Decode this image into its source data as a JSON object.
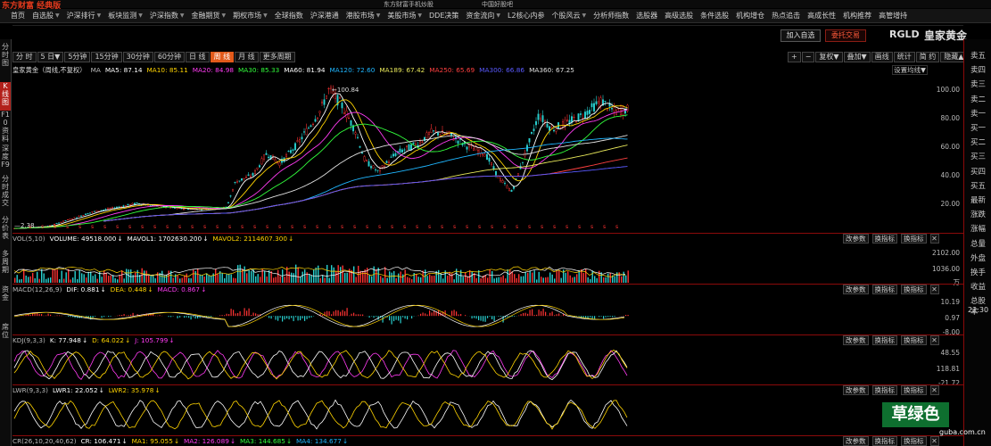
{
  "app": {
    "logo": "东方财富 经典版",
    "topnote1": "东方财富手机炒股",
    "topnote2": "中国好股吧"
  },
  "menu": [
    {
      "label": "首页",
      "dd": false
    },
    {
      "label": "自选股",
      "dd": true
    },
    {
      "label": "沪深排行",
      "dd": true
    },
    {
      "label": "板块监测",
      "dd": true
    },
    {
      "label": "沪深指数",
      "dd": true
    },
    {
      "label": "金融期货",
      "dd": true
    },
    {
      "label": "期权市场",
      "dd": true
    },
    {
      "label": "全球指数",
      "dd": false
    },
    {
      "label": "沪深港通",
      "dd": false
    },
    {
      "label": "港股市场",
      "dd": true
    },
    {
      "label": "美股市场",
      "dd": true
    },
    {
      "label": "DDE决策",
      "dd": false
    },
    {
      "label": "资金流向",
      "dd": true
    },
    {
      "label": "L2核心内参",
      "dd": false
    },
    {
      "label": "个股风云",
      "dd": true
    },
    {
      "label": "分析师指数",
      "dd": false
    },
    {
      "label": "选股器",
      "dd": false
    },
    {
      "label": "高级选股",
      "dd": false
    },
    {
      "label": "条件选股",
      "dd": false
    },
    {
      "label": "机构增仓",
      "dd": false
    },
    {
      "label": "热点追击",
      "dd": false
    },
    {
      "label": "高成长性",
      "dd": false
    },
    {
      "label": "机构推荐",
      "dd": false
    },
    {
      "label": "高管增持",
      "dd": false
    }
  ],
  "lefttabs": [
    {
      "label": "分时图",
      "active": false
    },
    {
      "label": "K线图",
      "active": true
    },
    {
      "label": "F10资料",
      "active": false
    },
    {
      "label": "深度F9",
      "active": false
    },
    {
      "label": "分时成交",
      "active": false
    },
    {
      "label": "分价表",
      "active": false
    },
    {
      "label": "多周期",
      "active": false
    },
    {
      "label": "资金",
      "active": false
    },
    {
      "label": "席位",
      "active": false
    }
  ],
  "periods": [
    {
      "label": "分 时",
      "active": false
    },
    {
      "label": "5 日▼",
      "active": false
    },
    {
      "label": "5分钟",
      "active": false
    },
    {
      "label": "15分钟",
      "active": false
    },
    {
      "label": "30分钟",
      "active": false
    },
    {
      "label": "60分钟",
      "active": false
    },
    {
      "label": "日 线",
      "active": false
    },
    {
      "label": "周 线",
      "active": true
    },
    {
      "label": "月 线",
      "active": false
    },
    {
      "label": "更多周期",
      "active": false
    }
  ],
  "toolbar": {
    "add_fav": "加入自选",
    "entrust": "委托交易",
    "code": "RGLD",
    "name": "皇家黄金",
    "plus": "+",
    "minus": "−",
    "fq": "复权▼",
    "overlay": "叠加▼",
    "draw": "画线",
    "stat": "统计",
    "simple": "简 约",
    "hide": "隐藏▲",
    "set_ma": "设置均线▼"
  },
  "main_header": {
    "title": "皇家黄金（周线,不复权）",
    "ma": "MA",
    "items": [
      {
        "text": "MA5: 87.14",
        "color": "#ffffff"
      },
      {
        "text": "MA10: 85.11",
        "color": "#ffd400"
      },
      {
        "text": "MA20: 84.98",
        "color": "#ff3bf2"
      },
      {
        "text": "MA30: 85.33",
        "color": "#32ff3c"
      },
      {
        "text": "MA60: 81.94",
        "color": "#ffffff"
      },
      {
        "text": "MA120: 72.60",
        "color": "#1fb6ff"
      },
      {
        "text": "MA189: 67.42",
        "color": "#e8e85a"
      },
      {
        "text": "MA250: 65.69",
        "color": "#ff4040"
      },
      {
        "text": "MA300: 66.86",
        "color": "#5a5aff"
      },
      {
        "text": "MA360: 67.25",
        "color": "#e0e0e0"
      }
    ]
  },
  "main_yaxis": [
    "100.00",
    "80.00",
    "60.00",
    "40.00",
    "20.00"
  ],
  "price_annotations": {
    "high": "100.84",
    "low": "2.38"
  },
  "right_panel": [
    "卖五",
    "卖四",
    "卖三",
    "卖二",
    "卖一",
    "买一",
    "买二",
    "买三",
    "买四",
    "买五",
    "最新",
    "涨跌",
    "涨幅",
    "总量",
    "外盘",
    "换手",
    "收益",
    "总股本"
  ],
  "time": "22:30",
  "panels": [
    {
      "id": "vol",
      "header": [
        {
          "text": "VOL(5,10)",
          "color": "#bbbbbb"
        },
        {
          "text": "VOLUME: 49518.000",
          "color": "#ffffff"
        },
        {
          "text": "MAVOL1: 1702630.200",
          "color": "#ffffff"
        },
        {
          "text": "MAVOL2: 2114607.300",
          "color": "#ffd400"
        }
      ],
      "yaxis": [
        "2102.00",
        "1036.00",
        "万"
      ]
    },
    {
      "id": "macd",
      "header": [
        {
          "text": "MACD(12,26,9)",
          "color": "#bbbbbb"
        },
        {
          "text": "DIF: 0.881",
          "color": "#ffffff"
        },
        {
          "text": "DEA: 0.448",
          "color": "#ffd400"
        },
        {
          "text": "MACD: 0.867",
          "color": "#ff3bf2"
        }
      ],
      "yaxis": [
        "10.19",
        "0.97",
        "-8.00"
      ]
    },
    {
      "id": "kdj",
      "header": [
        {
          "text": "KDJ(9,3,3)",
          "color": "#bbbbbb"
        },
        {
          "text": "K: 77.948",
          "color": "#ffffff"
        },
        {
          "text": "D: 64.022",
          "color": "#ffd400"
        },
        {
          "text": "J: 105.799",
          "color": "#ff3bf2"
        }
      ],
      "yaxis": [
        "118.81",
        "48.55",
        "-21.72"
      ]
    },
    {
      "id": "lwr",
      "header": [
        {
          "text": "LWR(9,3,3)",
          "color": "#bbbbbb"
        },
        {
          "text": "LWR1: 22.052",
          "color": "#ffffff"
        },
        {
          "text": "LWR2: 35.978",
          "color": "#ffd400"
        }
      ],
      "yaxis": []
    },
    {
      "id": "cr",
      "header": [
        {
          "text": "CR(26,10,20,40,62)",
          "color": "#bbbbbb"
        },
        {
          "text": "CR: 106.471",
          "color": "#ffffff"
        },
        {
          "text": "MA1: 95.055",
          "color": "#ffd400"
        },
        {
          "text": "MA2: 126.089",
          "color": "#ff3bf2"
        },
        {
          "text": "MA3: 144.685",
          "color": "#32ff3c"
        },
        {
          "text": "MA4: 134.677",
          "color": "#1fb6ff"
        }
      ],
      "yaxis": []
    }
  ],
  "panel_tools": {
    "params": "改参数",
    "swap": "换指标",
    "switch": "换指标",
    "close": "✕"
  },
  "watermark": {
    "text": "草绿色",
    "site": "guba.com.cn"
  }
}
